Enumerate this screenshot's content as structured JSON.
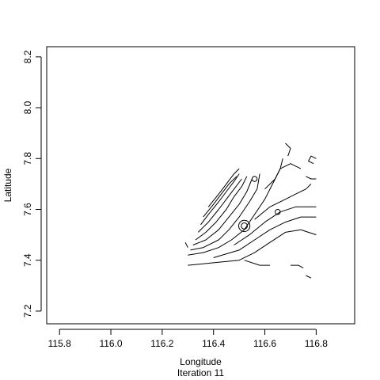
{
  "chart_data": {
    "type": "contour",
    "title": "",
    "subtitle": "Iteration 11",
    "xlabel": "Longitude",
    "ylabel": "Latitude",
    "xlim": [
      115.75,
      116.95
    ],
    "ylim": [
      7.15,
      8.24
    ],
    "x_ticks": [
      115.8,
      116.0,
      116.2,
      116.4,
      116.6,
      116.8
    ],
    "x_tick_labels": [
      "115.8",
      "116.0",
      "116.2",
      "116.4",
      "116.6",
      "116.8"
    ],
    "y_ticks": [
      7.2,
      7.4,
      7.6,
      7.8,
      8.0,
      8.2
    ],
    "y_tick_labels": [
      "7.2",
      "7.4",
      "7.6",
      "7.8",
      "8.0",
      "8.2"
    ],
    "grid": false,
    "legend": "none",
    "line_color": "#000000",
    "contour_lines": [
      [
        [
          116.3,
          7.42
        ],
        [
          116.36,
          7.43
        ],
        [
          116.42,
          7.45
        ],
        [
          116.47,
          7.48
        ],
        [
          116.52,
          7.52
        ],
        [
          116.56,
          7.58
        ],
        [
          116.6,
          7.64
        ],
        [
          116.63,
          7.7
        ],
        [
          116.66,
          7.76
        ],
        [
          116.67,
          7.8
        ]
      ],
      [
        [
          116.31,
          7.44
        ],
        [
          116.36,
          7.45
        ],
        [
          116.42,
          7.48
        ],
        [
          116.46,
          7.52
        ],
        [
          116.5,
          7.57
        ],
        [
          116.54,
          7.63
        ],
        [
          116.57,
          7.68
        ],
        [
          116.58,
          7.74
        ]
      ],
      [
        [
          116.32,
          7.46
        ],
        [
          116.37,
          7.48
        ],
        [
          116.42,
          7.52
        ],
        [
          116.46,
          7.57
        ],
        [
          116.5,
          7.62
        ],
        [
          116.53,
          7.67
        ],
        [
          116.55,
          7.72
        ]
      ],
      [
        [
          116.33,
          7.48
        ],
        [
          116.37,
          7.51
        ],
        [
          116.41,
          7.55
        ],
        [
          116.45,
          7.6
        ],
        [
          116.48,
          7.65
        ],
        [
          116.51,
          7.69
        ],
        [
          116.53,
          7.73
        ]
      ],
      [
        [
          116.34,
          7.51
        ],
        [
          116.38,
          7.55
        ],
        [
          116.42,
          7.6
        ],
        [
          116.45,
          7.64
        ],
        [
          116.48,
          7.68
        ],
        [
          116.51,
          7.72
        ]
      ],
      [
        [
          116.35,
          7.54
        ],
        [
          116.38,
          7.58
        ],
        [
          116.42,
          7.63
        ],
        [
          116.45,
          7.67
        ],
        [
          116.48,
          7.71
        ],
        [
          116.5,
          7.74
        ]
      ],
      [
        [
          116.36,
          7.57
        ],
        [
          116.4,
          7.62
        ],
        [
          116.43,
          7.66
        ],
        [
          116.46,
          7.7
        ],
        [
          116.49,
          7.73
        ]
      ],
      [
        [
          116.38,
          7.61
        ],
        [
          116.42,
          7.66
        ],
        [
          116.45,
          7.7
        ],
        [
          116.48,
          7.74
        ],
        [
          116.5,
          7.76
        ]
      ],
      [
        [
          116.3,
          7.38
        ],
        [
          116.4,
          7.39
        ],
        [
          116.5,
          7.4
        ],
        [
          116.56,
          7.43
        ],
        [
          116.62,
          7.47
        ],
        [
          116.68,
          7.51
        ],
        [
          116.74,
          7.52
        ],
        [
          116.8,
          7.5
        ]
      ],
      [
        [
          116.4,
          7.41
        ],
        [
          116.5,
          7.44
        ],
        [
          116.56,
          7.48
        ],
        [
          116.62,
          7.52
        ],
        [
          116.68,
          7.55
        ],
        [
          116.74,
          7.57
        ],
        [
          116.8,
          7.57
        ]
      ],
      [
        [
          116.48,
          7.46
        ],
        [
          116.54,
          7.5
        ],
        [
          116.6,
          7.55
        ],
        [
          116.66,
          7.59
        ],
        [
          116.72,
          7.61
        ],
        [
          116.8,
          7.61
        ]
      ],
      [
        [
          116.56,
          7.56
        ],
        [
          116.62,
          7.61
        ],
        [
          116.68,
          7.64
        ],
        [
          116.72,
          7.66
        ],
        [
          116.76,
          7.68
        ],
        [
          116.78,
          7.7
        ]
      ],
      [
        [
          116.6,
          7.68
        ],
        [
          116.64,
          7.72
        ],
        [
          116.66,
          7.76
        ],
        [
          116.7,
          7.78
        ],
        [
          116.74,
          7.76
        ]
      ],
      [
        [
          116.52,
          7.4
        ],
        [
          116.58,
          7.38
        ],
        [
          116.62,
          7.38
        ]
      ],
      [
        [
          116.69,
          7.81
        ],
        [
          116.7,
          7.84
        ],
        [
          116.68,
          7.86
        ]
      ],
      [
        [
          116.76,
          7.73
        ],
        [
          116.78,
          7.72
        ],
        [
          116.8,
          7.72
        ]
      ],
      [
        [
          116.79,
          7.78
        ],
        [
          116.77,
          7.79
        ],
        [
          116.78,
          7.81
        ],
        [
          116.8,
          7.8
        ]
      ],
      [
        [
          116.7,
          7.38
        ],
        [
          116.73,
          7.38
        ],
        [
          116.75,
          7.37
        ]
      ],
      [
        [
          116.76,
          7.34
        ],
        [
          116.78,
          7.33
        ]
      ],
      [
        [
          116.29,
          7.47
        ],
        [
          116.3,
          7.45
        ]
      ]
    ],
    "contour_rings": [
      {
        "x": 116.52,
        "y": 7.535,
        "r": 0.012
      },
      {
        "x": 116.52,
        "y": 7.535,
        "r": 0.022
      },
      {
        "x": 116.56,
        "y": 7.72,
        "r": 0.01
      },
      {
        "x": 116.65,
        "y": 7.59,
        "r": 0.01
      }
    ]
  }
}
